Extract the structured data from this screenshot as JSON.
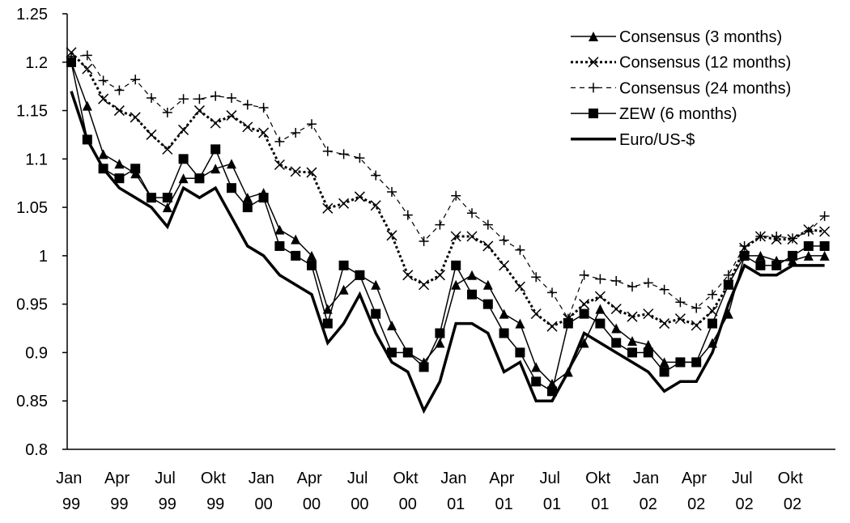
{
  "chart_data": {
    "type": "line",
    "categories": [
      "Jan 99",
      null,
      null,
      "Apr 99",
      null,
      null,
      "Jul 99",
      null,
      null,
      "Okt 99",
      null,
      null,
      "Jan 00",
      null,
      null,
      "Apr 00",
      null,
      null,
      "Jul 00",
      null,
      null,
      "Okt 00",
      null,
      null,
      "Jan 01",
      null,
      null,
      "Apr 01",
      null,
      null,
      "Jul 01",
      null,
      null,
      "Okt 01",
      null,
      null,
      "Jan 02",
      null,
      null,
      "Apr 02",
      null,
      null,
      "Jul 02",
      null,
      null,
      "Okt 02",
      null,
      null
    ],
    "series": [
      {
        "name": "Consensus (3 months)",
        "color": "#000000",
        "marker": "triangle",
        "dash": "none",
        "width": 1.5,
        "values": [
          1.2,
          1.155,
          1.105,
          1.095,
          1.085,
          1.06,
          1.05,
          1.08,
          1.08,
          1.09,
          1.095,
          1.06,
          1.065,
          1.027,
          1.017,
          1.0,
          0.945,
          0.965,
          0.98,
          0.97,
          0.928,
          0.9,
          0.89,
          0.91,
          0.97,
          0.98,
          0.97,
          0.94,
          0.93,
          0.885,
          0.868,
          0.88,
          0.91,
          0.945,
          0.925,
          0.912,
          0.908,
          0.89,
          0.89,
          0.89,
          0.91,
          0.94,
          1.0,
          1.0,
          0.995,
          0.995,
          1.0,
          1.0
        ]
      },
      {
        "name": "Consensus (12 months)",
        "color": "#000000",
        "marker": "cross",
        "dash": "3 3",
        "width": 3,
        "values": [
          1.21,
          1.193,
          1.162,
          1.15,
          1.143,
          1.125,
          1.11,
          1.13,
          1.15,
          1.137,
          1.145,
          1.133,
          1.127,
          1.094,
          1.087,
          1.086,
          1.049,
          1.054,
          1.061,
          1.052,
          1.021,
          0.98,
          0.97,
          0.98,
          1.02,
          1.02,
          1.01,
          0.99,
          0.968,
          0.94,
          0.927,
          0.935,
          0.95,
          0.958,
          0.945,
          0.937,
          0.94,
          0.93,
          0.935,
          0.928,
          0.943,
          0.97,
          1.008,
          1.02,
          1.017,
          1.017,
          1.027,
          1.025
        ]
      },
      {
        "name": "Consensus (24 months)",
        "color": "#000000",
        "marker": "plus",
        "dash": "6 5",
        "width": 1.2,
        "values": [
          1.206,
          1.207,
          1.181,
          1.171,
          1.182,
          1.163,
          1.148,
          1.162,
          1.162,
          1.165,
          1.163,
          1.156,
          1.153,
          1.118,
          1.127,
          1.136,
          1.108,
          1.105,
          1.101,
          1.083,
          1.066,
          1.042,
          1.015,
          1.032,
          1.062,
          1.044,
          1.032,
          1.016,
          1.006,
          0.978,
          0.962,
          0.935,
          0.98,
          0.976,
          0.974,
          0.968,
          0.972,
          0.965,
          0.952,
          0.946,
          0.96,
          0.98,
          1.01,
          1.02,
          1.02,
          1.018,
          1.025,
          1.041
        ]
      },
      {
        "name": "ZEW (6 months)",
        "color": "#000000",
        "marker": "square",
        "dash": "none",
        "width": 1.5,
        "values": [
          1.2,
          1.12,
          1.09,
          1.08,
          1.09,
          1.06,
          1.06,
          1.1,
          1.08,
          1.11,
          1.07,
          1.05,
          1.06,
          1.01,
          1.0,
          0.99,
          0.93,
          0.99,
          0.98,
          0.94,
          0.9,
          0.9,
          0.885,
          0.92,
          0.99,
          0.96,
          0.95,
          0.92,
          0.9,
          0.87,
          0.86,
          0.93,
          0.94,
          0.93,
          0.91,
          0.9,
          0.9,
          0.88,
          0.89,
          0.89,
          0.93,
          0.97,
          1.0,
          0.99,
          0.99,
          1.0,
          1.01,
          1.01
        ]
      },
      {
        "name": "Euro/US-$",
        "color": "#000000",
        "marker": "none",
        "dash": "none",
        "width": 3.5,
        "values": [
          1.17,
          1.12,
          1.09,
          1.07,
          1.06,
          1.05,
          1.03,
          1.07,
          1.06,
          1.07,
          1.04,
          1.01,
          1.0,
          0.98,
          0.97,
          0.96,
          0.91,
          0.93,
          0.96,
          0.92,
          0.89,
          0.88,
          0.84,
          0.87,
          0.93,
          0.93,
          0.92,
          0.88,
          0.89,
          0.85,
          0.85,
          0.88,
          0.92,
          0.91,
          0.9,
          0.89,
          0.88,
          0.86,
          0.87,
          0.87,
          0.9,
          0.95,
          0.99,
          0.98,
          0.98,
          0.99,
          0.99,
          0.99
        ]
      }
    ],
    "ylim": [
      0.8,
      1.25
    ],
    "yticks": [
      0.8,
      0.85,
      0.9,
      0.95,
      1,
      1.05,
      1.1,
      1.15,
      1.2,
      1.25
    ],
    "grid": false,
    "legend": "top-right"
  }
}
